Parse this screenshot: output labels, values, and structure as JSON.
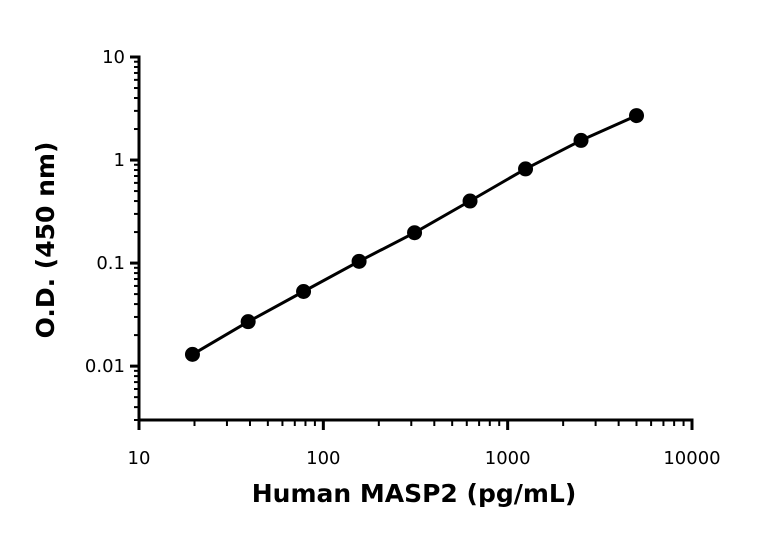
{
  "chart_data": {
    "type": "scatter",
    "title": "",
    "xlabel": "Human MASP2 (pg/mL)",
    "ylabel": "O.D. (450 nm)",
    "x_scale": "log",
    "y_scale": "log",
    "xlim": [
      10,
      10000
    ],
    "ylim": [
      0.003,
      10
    ],
    "grid": false,
    "x_ticks": [
      {
        "value": 10,
        "label": "10"
      },
      {
        "value": 100,
        "label": "100"
      },
      {
        "value": 1000,
        "label": "1000"
      },
      {
        "value": 10000,
        "label": "10000"
      }
    ],
    "y_ticks": [
      {
        "value": 0.01,
        "label": "0.01"
      },
      {
        "value": 0.1,
        "label": "0.1"
      },
      {
        "value": 1,
        "label": "1"
      },
      {
        "value": 10,
        "label": "10"
      }
    ],
    "series": [
      {
        "color": "#000000",
        "marker": "circle",
        "fit_line": true,
        "x": [
          19.5,
          39.1,
          78.1,
          156.3,
          312.5,
          625,
          1250,
          2500,
          5000
        ],
        "y": [
          0.013,
          0.027,
          0.053,
          0.104,
          0.197,
          0.4,
          0.82,
          1.55,
          2.7
        ]
      }
    ]
  }
}
